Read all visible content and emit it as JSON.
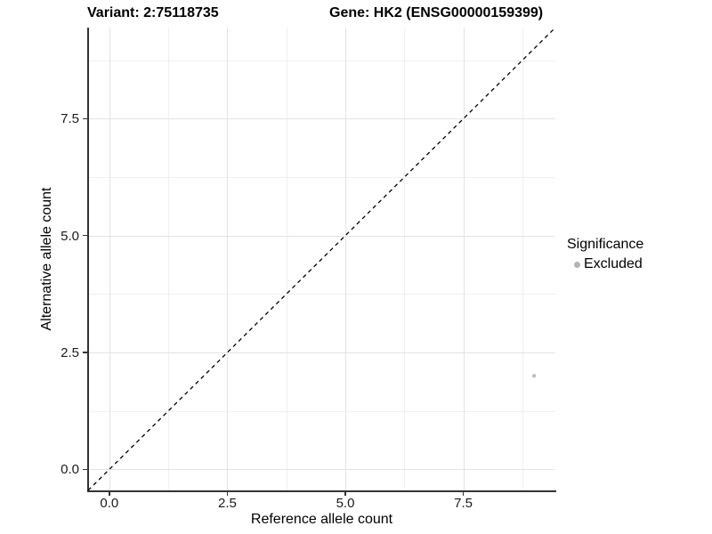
{
  "chart_data": {
    "type": "scatter",
    "title_left": "Variant: 2:75118735",
    "title_right": "Gene: HK2 (ENSG00000159399)",
    "xlabel": "Reference allele count",
    "ylabel": "Alternative allele count",
    "xlim": [
      -0.45,
      9.45
    ],
    "ylim": [
      -0.45,
      9.45
    ],
    "x_ticks": [
      0.0,
      2.5,
      5.0,
      7.5
    ],
    "y_ticks": [
      0.0,
      2.5,
      5.0,
      7.5
    ],
    "x_tick_labels": [
      "0.0",
      "2.5",
      "5.0",
      "7.5"
    ],
    "y_tick_labels": [
      "0.0",
      "2.5",
      "5.0",
      "7.5"
    ],
    "x_minor_ticks": [
      1.25,
      3.75,
      6.25,
      8.75
    ],
    "y_minor_ticks": [
      1.25,
      3.75,
      6.25,
      8.75
    ],
    "grid": true,
    "reference_line": {
      "type": "identity",
      "style": "dashed",
      "color": "#000000"
    },
    "series": [
      {
        "name": "Excluded",
        "color": "#bebebe",
        "points": [
          {
            "x": 9,
            "y": 2
          }
        ]
      }
    ],
    "legend": {
      "title": "Significance",
      "position": "right",
      "items": [
        {
          "label": "Excluded",
          "color": "#b3b3b3"
        }
      ]
    },
    "style": {
      "panel_background": "#ffffff",
      "grid_major_color": "#e3e3e3",
      "grid_minor_color": "#f0f0f0",
      "axis_line_color": "#333333",
      "text_color": "#000000"
    }
  }
}
